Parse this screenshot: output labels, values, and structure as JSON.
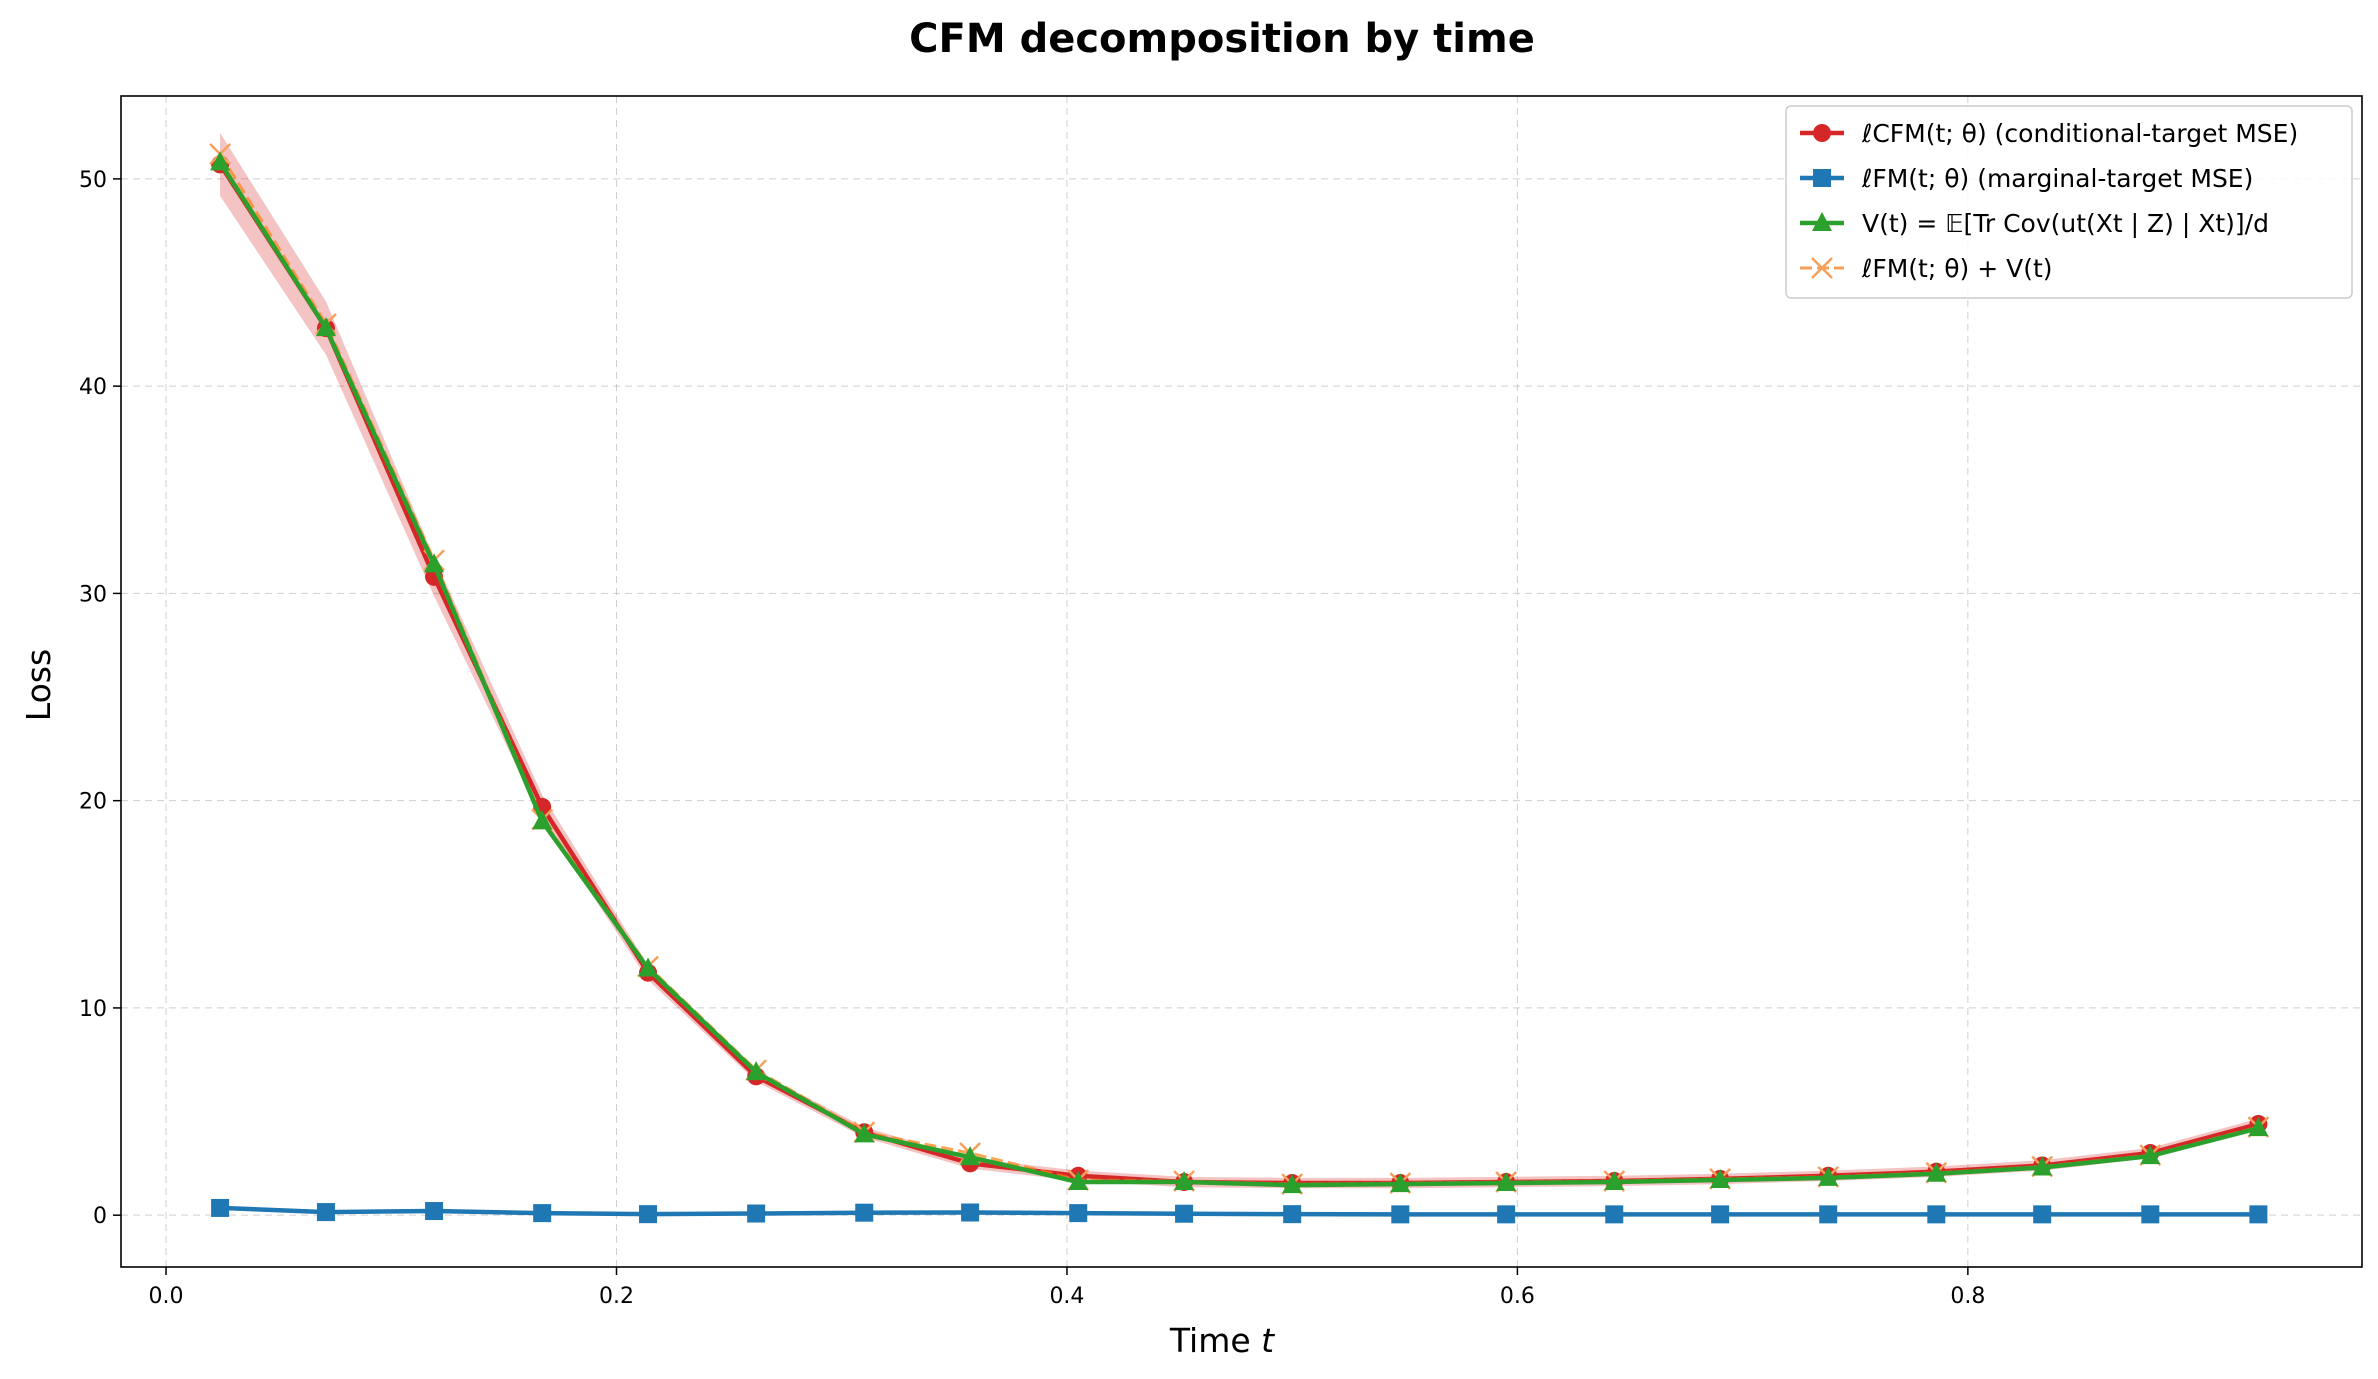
{
  "chart_data": {
    "type": "line",
    "title": "CFM decomposition by time",
    "xlabel": "Time t",
    "ylabel": "Loss",
    "xlim": [
      -0.02,
      0.975
    ],
    "ylim": [
      -2.5,
      54
    ],
    "xticks": [
      0.0,
      0.2,
      0.4,
      0.6,
      0.8
    ],
    "xtick_labels": [
      "0.0",
      "0.2",
      "0.4",
      "0.6",
      "0.8"
    ],
    "yticks": [
      0,
      10,
      20,
      30,
      40,
      50
    ],
    "ytick_labels": [
      "0",
      "10",
      "20",
      "30",
      "40",
      "50"
    ],
    "grid": true,
    "legend_position": "top-right",
    "x": [
      0.024,
      0.071,
      0.119,
      0.167,
      0.214,
      0.262,
      0.31,
      0.357,
      0.405,
      0.452,
      0.5,
      0.548,
      0.595,
      0.643,
      0.69,
      0.738,
      0.786,
      0.833,
      0.881,
      0.929
    ],
    "series": [
      {
        "name": "ℓCFM(t; θ) (conditional-target MSE)",
        "color": "#d62728",
        "marker": "circle",
        "band": true,
        "values": [
          50.7,
          42.8,
          30.8,
          19.7,
          11.7,
          6.7,
          4.0,
          2.5,
          1.9,
          1.6,
          1.55,
          1.55,
          1.6,
          1.65,
          1.75,
          1.9,
          2.1,
          2.4,
          3.0,
          4.4
        ]
      },
      {
        "name": "ℓFM(t; θ) (marginal-target MSE)",
        "color": "#1f77b4",
        "marker": "square",
        "values": [
          0.35,
          0.15,
          0.2,
          0.1,
          0.05,
          0.08,
          0.12,
          0.13,
          0.1,
          0.07,
          0.05,
          0.04,
          0.04,
          0.04,
          0.04,
          0.04,
          0.04,
          0.04,
          0.04,
          0.04
        ]
      },
      {
        "name": "V(t) = 𝔼[Tr Cov(ut(Xt | Z) | Xt)]/d",
        "color": "#2ca02c",
        "marker": "triangle",
        "values": [
          50.8,
          42.8,
          31.4,
          19.0,
          11.9,
          6.9,
          3.9,
          2.8,
          1.6,
          1.6,
          1.45,
          1.5,
          1.55,
          1.6,
          1.7,
          1.8,
          2.0,
          2.3,
          2.85,
          4.2
        ]
      },
      {
        "name": "ℓFM(t; θ) + V(t)",
        "color": "#ff7f0e",
        "marker": "x",
        "values": [
          51.2,
          43.0,
          31.6,
          19.1,
          12.0,
          7.0,
          4.0,
          3.0,
          1.7,
          1.65,
          1.5,
          1.55,
          1.6,
          1.65,
          1.75,
          1.85,
          2.05,
          2.35,
          2.9,
          4.25
        ]
      }
    ]
  }
}
